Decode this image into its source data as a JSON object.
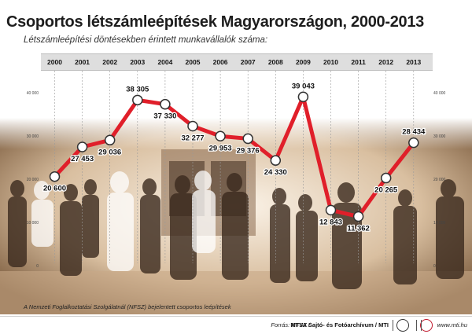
{
  "header": {
    "title": "Csoportos létszámleépítések Magyarországon, 2000-2013",
    "subtitle": "Létszámleépítési döntésekben érintett munkavállalók száma:"
  },
  "chart_data": {
    "type": "line",
    "title": "Csoportos létszámleépítések Magyarországon, 2000-2013",
    "subtitle": "Létszámleépítési döntésekben érintett munkavállalók száma:",
    "categories": [
      "2000",
      "2001",
      "2002",
      "2003",
      "2004",
      "2005",
      "2006",
      "2007",
      "2008",
      "2009",
      "2010",
      "2011",
      "2012",
      "2013"
    ],
    "values": [
      20600,
      27453,
      29036,
      38305,
      37330,
      32277,
      29953,
      29376,
      24330,
      39043,
      12843,
      11362,
      20265,
      28434
    ],
    "value_labels": [
      "20 600",
      "27 453",
      "29 036",
      "38 305",
      "37 330",
      "32 277",
      "29 953",
      "29 376",
      "24 330",
      "39 043",
      "12 843",
      "11 362",
      "20 265",
      "28 434"
    ],
    "y_ticks": [
      "0",
      "10 000",
      "20 000",
      "30 000",
      "40 000"
    ],
    "ylim": [
      0,
      40000
    ],
    "axes_on_both_sides": true,
    "line_color": "#e01f2a",
    "marker_fill": "#ffffff",
    "marker_stroke": "#333333"
  },
  "footnote": "A Nemzeti Foglalkoztatási Szolgálatnál (NFSZ) bejelentett csoportos leépítések",
  "footer": {
    "source_label": "Forrás: NFSZ /",
    "source_org": "MTVA Sajtó- és Fotóarchívum / MTI",
    "website": "www.mti.hu"
  }
}
